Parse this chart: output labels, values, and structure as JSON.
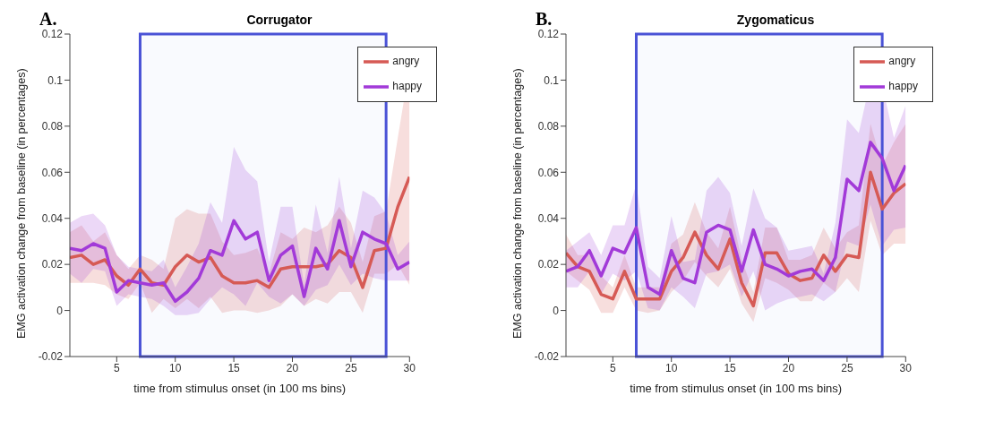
{
  "chart_data": [
    {
      "type": "line",
      "title": "Corrugator",
      "xlabel": "time from stimulus onset (in 100 ms bins)",
      "ylabel": "EMG activation change from baseline (in percentages)",
      "annotations": [
        "A."
      ],
      "x": [
        1,
        2,
        3,
        4,
        5,
        6,
        7,
        8,
        9,
        10,
        11,
        12,
        13,
        14,
        15,
        16,
        17,
        18,
        19,
        20,
        21,
        22,
        23,
        24,
        25,
        26,
        27,
        28,
        29,
        30
      ],
      "series": [
        {
          "name": "angry",
          "color": "#d65a55",
          "values": [
            0.023,
            0.024,
            0.02,
            0.022,
            0.015,
            0.011,
            0.018,
            0.012,
            0.011,
            0.019,
            0.024,
            0.021,
            0.023,
            0.015,
            0.012,
            0.012,
            0.013,
            0.01,
            0.018,
            0.019,
            0.019,
            0.019,
            0.02,
            0.026,
            0.023,
            0.01,
            0.026,
            0.027,
            0.045,
            0.058
          ],
          "lower": [
            0.012,
            0.012,
            0.012,
            0.011,
            0.007,
            0.005,
            0.012,
            -0.001,
            0.005,
            0.001,
            0.005,
            0.001,
            0.006,
            -0.001,
            0.0,
            0.0,
            -0.001,
            0.0,
            0.002,
            0.007,
            0.002,
            0.005,
            0.003,
            0.008,
            0.008,
            -0.001,
            0.016,
            0.016,
            0.02,
            0.011
          ],
          "upper": [
            0.034,
            0.037,
            0.03,
            0.034,
            0.024,
            0.018,
            0.024,
            0.022,
            0.018,
            0.04,
            0.044,
            0.042,
            0.042,
            0.03,
            0.024,
            0.025,
            0.027,
            0.016,
            0.034,
            0.031,
            0.036,
            0.034,
            0.037,
            0.045,
            0.038,
            0.021,
            0.041,
            0.043,
            0.075,
            0.106
          ]
        },
        {
          "name": "happy",
          "color": "#a23ad8",
          "values": [
            0.027,
            0.026,
            0.029,
            0.027,
            0.008,
            0.013,
            0.012,
            0.011,
            0.012,
            0.004,
            0.008,
            0.014,
            0.026,
            0.024,
            0.039,
            0.031,
            0.034,
            0.013,
            0.024,
            0.028,
            0.006,
            0.027,
            0.018,
            0.039,
            0.019,
            0.034,
            0.031,
            0.029,
            0.018,
            0.021
          ],
          "lower": [
            0.016,
            0.012,
            0.018,
            0.017,
            0.002,
            0.007,
            0.006,
            0.005,
            0.002,
            -0.002,
            -0.002,
            -0.001,
            0.005,
            0.01,
            0.007,
            0.002,
            0.012,
            0.006,
            0.003,
            0.007,
            0.002,
            0.009,
            0.011,
            0.02,
            0.011,
            0.016,
            0.014,
            0.013,
            0.013,
            0.013
          ],
          "upper": [
            0.038,
            0.041,
            0.042,
            0.037,
            0.024,
            0.019,
            0.018,
            0.017,
            0.022,
            0.01,
            0.019,
            0.029,
            0.047,
            0.038,
            0.071,
            0.061,
            0.056,
            0.021,
            0.045,
            0.045,
            0.011,
            0.046,
            0.025,
            0.058,
            0.027,
            0.052,
            0.049,
            0.042,
            0.024,
            0.03
          ]
        }
      ],
      "xlim": [
        1,
        30
      ],
      "xticks": [
        5,
        10,
        15,
        20,
        25,
        30
      ],
      "ylim": [
        -0.02,
        0.12
      ],
      "yticks": [
        -0.02,
        0,
        0.02,
        0.04,
        0.06,
        0.08,
        0.1,
        0.12
      ],
      "bands": [
        {
          "axis": "x",
          "from": 7,
          "to": 28,
          "color": "#4a52d6"
        }
      ],
      "legend": "top right",
      "grid": false,
      "marker": "none",
      "line_style": "solid"
    },
    {
      "type": "line",
      "title": "Zygomaticus",
      "xlabel": "time from stimulus onset (in 100 ms bins)",
      "ylabel": "EMG activation change from baseline (in percentages)",
      "annotations": [
        "B."
      ],
      "x": [
        1,
        2,
        3,
        4,
        5,
        6,
        7,
        8,
        9,
        10,
        11,
        12,
        13,
        14,
        15,
        16,
        17,
        18,
        19,
        20,
        21,
        22,
        23,
        24,
        25,
        26,
        27,
        28,
        29,
        30
      ],
      "series": [
        {
          "name": "angry",
          "color": "#d65a55",
          "values": [
            0.025,
            0.019,
            0.017,
            0.007,
            0.005,
            0.017,
            0.005,
            0.005,
            0.005,
            0.017,
            0.023,
            0.034,
            0.024,
            0.018,
            0.031,
            0.012,
            0.002,
            0.025,
            0.025,
            0.016,
            0.013,
            0.014,
            0.024,
            0.017,
            0.024,
            0.023,
            0.06,
            0.044,
            0.051,
            0.055
          ],
          "lower": [
            0.017,
            0.013,
            0.009,
            -0.001,
            -0.001,
            0.01,
            0.0,
            -0.001,
            0.0,
            0.008,
            0.013,
            0.021,
            0.015,
            0.01,
            0.018,
            0.003,
            -0.005,
            0.014,
            0.012,
            0.009,
            0.004,
            0.004,
            0.012,
            0.008,
            0.014,
            0.008,
            0.039,
            0.024,
            0.029,
            0.029
          ],
          "upper": [
            0.033,
            0.024,
            0.024,
            0.015,
            0.01,
            0.024,
            0.01,
            0.01,
            0.01,
            0.029,
            0.033,
            0.047,
            0.034,
            0.027,
            0.045,
            0.022,
            0.008,
            0.036,
            0.036,
            0.022,
            0.022,
            0.024,
            0.036,
            0.027,
            0.034,
            0.037,
            0.081,
            0.063,
            0.073,
            0.081
          ]
        },
        {
          "name": "happy",
          "color": "#a23ad8",
          "values": [
            0.017,
            0.019,
            0.026,
            0.015,
            0.027,
            0.025,
            0.036,
            0.01,
            0.007,
            0.026,
            0.014,
            0.012,
            0.034,
            0.037,
            0.035,
            0.017,
            0.035,
            0.02,
            0.018,
            0.015,
            0.017,
            0.018,
            0.013,
            0.023,
            0.057,
            0.052,
            0.073,
            0.066,
            0.052,
            0.063
          ],
          "lower": [
            0.01,
            0.01,
            0.017,
            0.007,
            0.016,
            0.013,
            0.017,
            0.001,
            0.0,
            0.01,
            0.006,
            0.001,
            0.016,
            0.017,
            0.02,
            0.006,
            0.017,
            0.0,
            0.003,
            0.005,
            0.006,
            0.007,
            0.004,
            0.008,
            0.03,
            0.028,
            0.046,
            0.028,
            0.035,
            0.036
          ],
          "upper": [
            0.026,
            0.03,
            0.034,
            0.024,
            0.037,
            0.037,
            0.055,
            0.019,
            0.014,
            0.041,
            0.021,
            0.022,
            0.052,
            0.058,
            0.051,
            0.028,
            0.053,
            0.04,
            0.036,
            0.026,
            0.027,
            0.028,
            0.016,
            0.038,
            0.083,
            0.077,
            0.1,
            0.098,
            0.075,
            0.089
          ]
        }
      ],
      "xlim": [
        1,
        30
      ],
      "xticks": [
        5,
        10,
        15,
        20,
        25,
        30
      ],
      "ylim": [
        -0.02,
        0.12
      ],
      "yticks": [
        -0.02,
        0,
        0.02,
        0.04,
        0.06,
        0.08,
        0.1,
        0.12
      ],
      "bands": [
        {
          "axis": "x",
          "from": 7,
          "to": 28,
          "color": "#4a52d6"
        }
      ],
      "legend": "top right",
      "grid": false,
      "marker": "none",
      "line_style": "solid"
    }
  ]
}
